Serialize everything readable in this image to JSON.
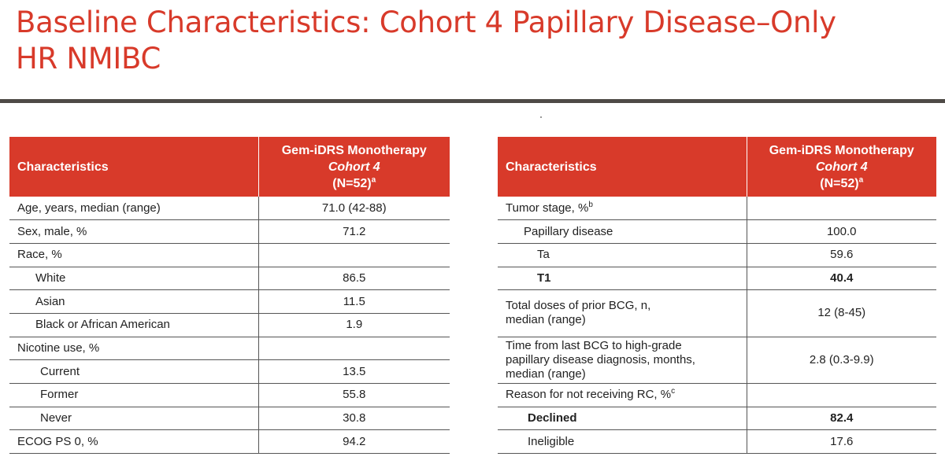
{
  "slide": {
    "title_line1": "Baseline Characteristics: Cohort 4 Papillary Disease–Only",
    "title_line2": "HR NMIBC"
  },
  "header": {
    "characteristics": "Characteristics",
    "group_line1": "Gem-iDRS Monotherapy",
    "group_line2": "Cohort 4",
    "group_line3": "(N=52)",
    "group_footnote": "a"
  },
  "left_table": {
    "rows": [
      {
        "label": "Age, years, median (range)",
        "value": "71.0 (42-88)"
      },
      {
        "label": "Sex, male, %",
        "value": "71.2"
      },
      {
        "label": "Race, %",
        "value": ""
      },
      {
        "label": "White",
        "value": "86.5"
      },
      {
        "label": "Asian",
        "value": "11.5"
      },
      {
        "label": "Black or African American",
        "value": "1.9"
      },
      {
        "label": "Nicotine use, %",
        "value": ""
      },
      {
        "label": "Current",
        "value": "13.5"
      },
      {
        "label": "Former",
        "value": "55.8"
      },
      {
        "label": "Never",
        "value": "30.8"
      },
      {
        "label": "ECOG PS 0, %",
        "value": "94.2"
      }
    ]
  },
  "right_table": {
    "rows": [
      {
        "label": "Tumor stage, %",
        "footnote": "b",
        "value": ""
      },
      {
        "label": "Papillary disease",
        "value": "100.0"
      },
      {
        "label": "Ta",
        "value": "59.6"
      },
      {
        "label": "T1",
        "value": "40.4"
      },
      {
        "label_line1": "Total doses of prior BCG, n,",
        "label_line2": "median (range)",
        "value": "12 (8-45)"
      },
      {
        "label_line1": "Time from last BCG to high-grade",
        "label_line2": "papillary disease diagnosis, months,",
        "label_line3": "median (range)",
        "value": "2.8 (0.3-9.9)"
      },
      {
        "label": "Reason for not receiving RC, %",
        "footnote": "c",
        "value": ""
      },
      {
        "label": "Declined",
        "value": "82.4"
      },
      {
        "label": "Ineligible",
        "value": "17.6"
      }
    ]
  }
}
